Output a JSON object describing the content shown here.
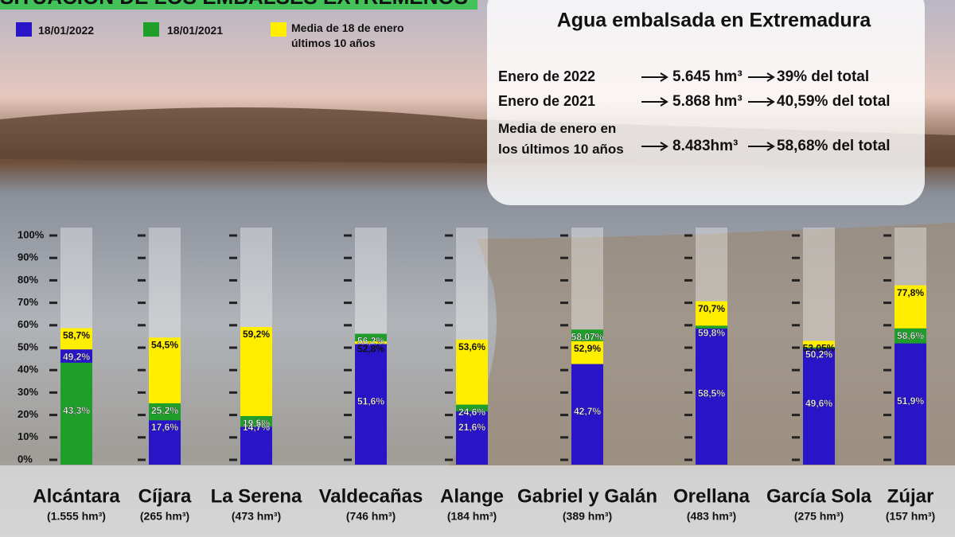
{
  "chart_data": {
    "type": "bar",
    "title": "SITUACIÓN DE LOS EMBALSES EXTREMEÑOS",
    "categories": [
      "Alcántara",
      "Cíjara",
      "La Serena",
      "Valdecañas",
      "Alange",
      "Gabriel y Galán",
      "Orellana",
      "García Sola",
      "Zújar"
    ],
    "capacities": [
      "(1.555 hm³)",
      "(265 hm³)",
      "(473 hm³)",
      "(746 hm³)",
      "(184 hm³)",
      "(389 hm³)",
      "(483 hm³)",
      "(275 hm³)",
      "(157 hm³)"
    ],
    "series": [
      {
        "name": "18/01/2022",
        "color": "#2a14c8",
        "values": [
          49.2,
          17.6,
          14.7,
          51.6,
          21.6,
          42.7,
          58.5,
          49.6,
          51.9
        ],
        "value_labels": [
          "49,2%",
          "17,6%",
          "14,7%",
          "51,6%",
          "21,6%",
          "42,7%",
          "58,5%",
          "49,6%",
          "51,9%"
        ]
      },
      {
        "name": "18/01/2021",
        "color": "#1f9e2a",
        "values": [
          43.3,
          25.2,
          19.5,
          56.2,
          24.6,
          58.07,
          59.8,
          50.2,
          58.6
        ],
        "value_labels": [
          "43,3%",
          "25,2%",
          "19,5%",
          "56,2%",
          "24,6%",
          "58,07%",
          "59,8%",
          "50,2%",
          "58,6%"
        ]
      },
      {
        "name": "Media de 18 de enero últimos 10 años",
        "color": "#ffee00",
        "values": [
          58.7,
          54.5,
          59.2,
          52.8,
          53.6,
          52.9,
          70.7,
          53.05,
          77.8
        ],
        "value_labels": [
          "58,7%",
          "54,5%",
          "59,2%",
          "52,8%",
          "53,6%",
          "52,9%",
          "70,7%",
          "53,05%",
          "77,8%"
        ]
      }
    ],
    "ylim": [
      0,
      100
    ],
    "yticks": [
      {
        "value": 0,
        "label": "0%"
      },
      {
        "value": 10,
        "label": "10%"
      },
      {
        "value": 20,
        "label": "20%"
      },
      {
        "value": 30,
        "label": "30%"
      },
      {
        "value": 40,
        "label": "40%"
      },
      {
        "value": 50,
        "label": "50%"
      },
      {
        "value": 60,
        "label": "60%"
      },
      {
        "value": 70,
        "label": "70%"
      },
      {
        "value": 80,
        "label": "80%"
      },
      {
        "value": 90,
        "label": "90%"
      },
      {
        "value": 100,
        "label": "100%"
      }
    ]
  },
  "info_box": {
    "title": "Agua embalsada en Extremadura",
    "rows": [
      [
        "Enero de 2022",
        "5.645 hm³",
        "39% del total"
      ],
      [
        "Enero de 2021",
        "5.868 hm³",
        "40,59% del total"
      ],
      [
        "Media de enero en los últimos 10 años",
        "8.483hm³",
        "58,68% del total"
      ]
    ]
  }
}
